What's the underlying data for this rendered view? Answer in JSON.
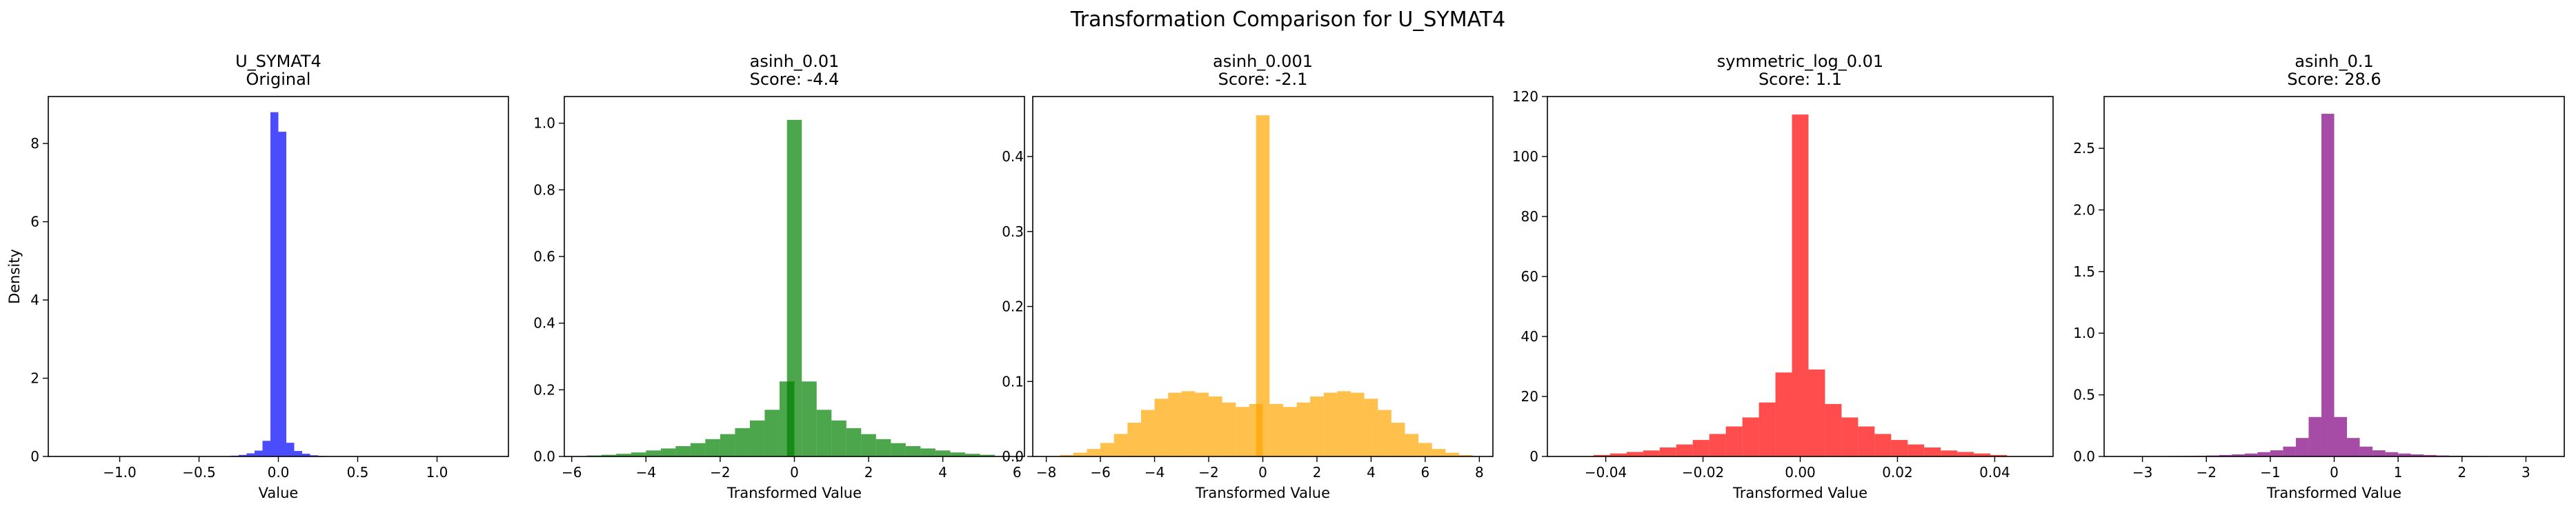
{
  "figure": {
    "suptitle": "Transformation Comparison for U_SYMAT4"
  },
  "chart_data": [
    {
      "type": "bar",
      "title": "U_SYMAT4\nOriginal",
      "xlabel": "Value",
      "ylabel": "Density",
      "color": "#0000ff",
      "xlim": [
        -1.45,
        1.45
      ],
      "ylim": [
        0,
        9.2
      ],
      "xticks": [
        -1.0,
        -0.5,
        0.0,
        0.5,
        1.0
      ],
      "xtick_labels": [
        "−1.0",
        "−0.5",
        "0.0",
        "0.5",
        "1.0"
      ],
      "yticks": [
        0,
        2,
        4,
        6,
        8
      ],
      "ytick_labels": [
        "0",
        "2",
        "4",
        "6",
        "8"
      ],
      "bin_width": 0.05,
      "bins": [
        {
          "x0": -0.35,
          "v": 0.01
        },
        {
          "x0": -0.3,
          "v": 0.02
        },
        {
          "x0": -0.25,
          "v": 0.04
        },
        {
          "x0": -0.2,
          "v": 0.08
        },
        {
          "x0": -0.15,
          "v": 0.15
        },
        {
          "x0": -0.1,
          "v": 0.4
        },
        {
          "x0": -0.05,
          "v": 8.8
        },
        {
          "x0": 0.0,
          "v": 8.3
        },
        {
          "x0": 0.05,
          "v": 0.35
        },
        {
          "x0": 0.1,
          "v": 0.14
        },
        {
          "x0": 0.15,
          "v": 0.07
        },
        {
          "x0": 0.2,
          "v": 0.03
        },
        {
          "x0": 0.25,
          "v": 0.015
        },
        {
          "x0": 0.3,
          "v": 0.01
        }
      ]
    },
    {
      "type": "bar",
      "title": "asinh_0.01\nScore: -4.4",
      "xlabel": "Transformed Value",
      "ylabel": "",
      "color": "#008000",
      "xlim": [
        -6.2,
        6.2
      ],
      "ylim": [
        0,
        1.08
      ],
      "xticks": [
        -6,
        -4,
        -2,
        0,
        2,
        4,
        6
      ],
      "xtick_labels": [
        "−6",
        "−4",
        "−2",
        "0",
        "2",
        "4",
        "6"
      ],
      "yticks": [
        0.0,
        0.2,
        0.4,
        0.6,
        0.8,
        1.0
      ],
      "ytick_labels": [
        "0.0",
        "0.2",
        "0.4",
        "0.6",
        "0.8",
        "1.0"
      ],
      "bin_width": 0.4,
      "bins": [
        {
          "x0": -5.6,
          "v": 0.003
        },
        {
          "x0": -5.2,
          "v": 0.005
        },
        {
          "x0": -4.8,
          "v": 0.008
        },
        {
          "x0": -4.4,
          "v": 0.012
        },
        {
          "x0": -4.0,
          "v": 0.018
        },
        {
          "x0": -3.6,
          "v": 0.024
        },
        {
          "x0": -3.2,
          "v": 0.031
        },
        {
          "x0": -2.8,
          "v": 0.04
        },
        {
          "x0": -2.4,
          "v": 0.052
        },
        {
          "x0": -2.0,
          "v": 0.067
        },
        {
          "x0": -1.6,
          "v": 0.085
        },
        {
          "x0": -1.2,
          "v": 0.108
        },
        {
          "x0": -0.8,
          "v": 0.14
        },
        {
          "x0": -0.4,
          "v": 0.225
        },
        {
          "x0": -0.2,
          "v": 1.01
        },
        {
          "x0": 0.2,
          "v": 0.225
        },
        {
          "x0": 0.6,
          "v": 0.14
        },
        {
          "x0": 1.0,
          "v": 0.108
        },
        {
          "x0": 1.4,
          "v": 0.085
        },
        {
          "x0": 1.8,
          "v": 0.067
        },
        {
          "x0": 2.2,
          "v": 0.052
        },
        {
          "x0": 2.6,
          "v": 0.04
        },
        {
          "x0": 3.0,
          "v": 0.031
        },
        {
          "x0": 3.4,
          "v": 0.024
        },
        {
          "x0": 3.8,
          "v": 0.018
        },
        {
          "x0": 4.2,
          "v": 0.012
        },
        {
          "x0": 4.6,
          "v": 0.008
        },
        {
          "x0": 5.0,
          "v": 0.005
        }
      ]
    },
    {
      "type": "bar",
      "title": "asinh_0.001\nScore: -2.1",
      "xlabel": "Transformed Value",
      "ylabel": "",
      "color": "#ffa500",
      "xlim": [
        -8.5,
        8.5
      ],
      "ylim": [
        0,
        0.48
      ],
      "xticks": [
        -8,
        -6,
        -4,
        -2,
        0,
        2,
        4,
        6,
        8
      ],
      "xtick_labels": [
        "−8",
        "−6",
        "−4",
        "−2",
        "0",
        "2",
        "4",
        "6",
        "8"
      ],
      "yticks": [
        0.0,
        0.1,
        0.2,
        0.3,
        0.4
      ],
      "ytick_labels": [
        "0.0",
        "0.1",
        "0.2",
        "0.3",
        "0.4"
      ],
      "bin_width": 0.5,
      "bins": [
        {
          "x0": -7.5,
          "v": 0.002
        },
        {
          "x0": -7.0,
          "v": 0.005
        },
        {
          "x0": -6.5,
          "v": 0.01
        },
        {
          "x0": -6.0,
          "v": 0.018
        },
        {
          "x0": -5.5,
          "v": 0.03
        },
        {
          "x0": -5.0,
          "v": 0.045
        },
        {
          "x0": -4.5,
          "v": 0.062
        },
        {
          "x0": -4.0,
          "v": 0.077
        },
        {
          "x0": -3.5,
          "v": 0.085
        },
        {
          "x0": -3.0,
          "v": 0.087
        },
        {
          "x0": -2.5,
          "v": 0.085
        },
        {
          "x0": -2.0,
          "v": 0.08
        },
        {
          "x0": -1.5,
          "v": 0.072
        },
        {
          "x0": -1.0,
          "v": 0.066
        },
        {
          "x0": -0.5,
          "v": 0.07
        },
        {
          "x0": -0.25,
          "v": 0.455
        },
        {
          "x0": 0.25,
          "v": 0.07
        },
        {
          "x0": 0.75,
          "v": 0.066
        },
        {
          "x0": 1.25,
          "v": 0.072
        },
        {
          "x0": 1.75,
          "v": 0.08
        },
        {
          "x0": 2.25,
          "v": 0.085
        },
        {
          "x0": 2.75,
          "v": 0.087
        },
        {
          "x0": 3.25,
          "v": 0.085
        },
        {
          "x0": 3.75,
          "v": 0.077
        },
        {
          "x0": 4.25,
          "v": 0.062
        },
        {
          "x0": 4.75,
          "v": 0.045
        },
        {
          "x0": 5.25,
          "v": 0.03
        },
        {
          "x0": 5.75,
          "v": 0.018
        },
        {
          "x0": 6.25,
          "v": 0.01
        },
        {
          "x0": 6.75,
          "v": 0.005
        },
        {
          "x0": 7.25,
          "v": 0.002
        }
      ]
    },
    {
      "type": "bar",
      "title": "symmetric_log_0.01\nScore: 1.1",
      "xlabel": "Transformed Value",
      "ylabel": "",
      "color": "#ff0000",
      "xlim": [
        -0.052,
        0.052
      ],
      "ylim": [
        0,
        120
      ],
      "xticks": [
        -0.04,
        -0.02,
        0.0,
        0.02,
        0.04
      ],
      "xtick_labels": [
        "−0.04",
        "−0.02",
        "0.00",
        "0.02",
        "0.04"
      ],
      "yticks": [
        0,
        20,
        40,
        60,
        80,
        100,
        120
      ],
      "ytick_labels": [
        "0",
        "20",
        "40",
        "60",
        "80",
        "100",
        "120"
      ],
      "bin_width": 0.0034,
      "bins": [
        {
          "x0": -0.0425,
          "v": 0.5
        },
        {
          "x0": -0.0391,
          "v": 1
        },
        {
          "x0": -0.0357,
          "v": 1.5
        },
        {
          "x0": -0.0323,
          "v": 2
        },
        {
          "x0": -0.0289,
          "v": 3
        },
        {
          "x0": -0.0255,
          "v": 4
        },
        {
          "x0": -0.0221,
          "v": 5.5
        },
        {
          "x0": -0.0187,
          "v": 7.5
        },
        {
          "x0": -0.0153,
          "v": 10
        },
        {
          "x0": -0.0119,
          "v": 13
        },
        {
          "x0": -0.0085,
          "v": 18
        },
        {
          "x0": -0.0051,
          "v": 28
        },
        {
          "x0": -0.0017,
          "v": 114
        },
        {
          "x0": 0.0017,
          "v": 29
        },
        {
          "x0": 0.0051,
          "v": 17.5
        },
        {
          "x0": 0.0085,
          "v": 13
        },
        {
          "x0": 0.0119,
          "v": 10
        },
        {
          "x0": 0.0153,
          "v": 7.5
        },
        {
          "x0": 0.0187,
          "v": 5.5
        },
        {
          "x0": 0.0221,
          "v": 4
        },
        {
          "x0": 0.0255,
          "v": 3
        },
        {
          "x0": 0.0289,
          "v": 2
        },
        {
          "x0": 0.0323,
          "v": 1.5
        },
        {
          "x0": 0.0357,
          "v": 1
        },
        {
          "x0": 0.0391,
          "v": 0.5
        }
      ]
    },
    {
      "type": "bar",
      "title": "asinh_0.1\nScore: 28.6",
      "xlabel": "Transformed Value",
      "ylabel": "",
      "color": "#800080",
      "xlim": [
        -3.6,
        3.6
      ],
      "ylim": [
        0,
        2.92
      ],
      "xticks": [
        -3,
        -2,
        -1,
        0,
        1,
        2,
        3
      ],
      "xtick_labels": [
        "−3",
        "−2",
        "−1",
        "0",
        "1",
        "2",
        "3"
      ],
      "yticks": [
        0.0,
        0.5,
        1.0,
        1.5,
        2.0,
        2.5
      ],
      "ytick_labels": [
        "0.0",
        "0.5",
        "1.0",
        "1.5",
        "2.0",
        "2.5"
      ],
      "bin_width": 0.2,
      "bins": [
        {
          "x0": -3.0,
          "v": 0.002
        },
        {
          "x0": -2.8,
          "v": 0.003
        },
        {
          "x0": -2.6,
          "v": 0.004
        },
        {
          "x0": -2.4,
          "v": 0.005
        },
        {
          "x0": -2.2,
          "v": 0.006
        },
        {
          "x0": -2.0,
          "v": 0.008
        },
        {
          "x0": -1.8,
          "v": 0.012
        },
        {
          "x0": -1.6,
          "v": 0.017
        },
        {
          "x0": -1.4,
          "v": 0.024
        },
        {
          "x0": -1.2,
          "v": 0.035
        },
        {
          "x0": -1.0,
          "v": 0.05
        },
        {
          "x0": -0.8,
          "v": 0.08
        },
        {
          "x0": -0.6,
          "v": 0.15
        },
        {
          "x0": -0.4,
          "v": 0.32
        },
        {
          "x0": -0.2,
          "v": 2.78
        },
        {
          "x0": 0.0,
          "v": 0.32
        },
        {
          "x0": 0.2,
          "v": 0.15
        },
        {
          "x0": 0.4,
          "v": 0.08
        },
        {
          "x0": 0.6,
          "v": 0.05
        },
        {
          "x0": 0.8,
          "v": 0.035
        },
        {
          "x0": 1.0,
          "v": 0.024
        },
        {
          "x0": 1.2,
          "v": 0.017
        },
        {
          "x0": 1.4,
          "v": 0.012
        },
        {
          "x0": 1.6,
          "v": 0.008
        },
        {
          "x0": 1.8,
          "v": 0.006
        },
        {
          "x0": 2.0,
          "v": 0.005
        },
        {
          "x0": 2.2,
          "v": 0.004
        },
        {
          "x0": 2.4,
          "v": 0.003
        },
        {
          "x0": 2.6,
          "v": 0.002
        }
      ]
    }
  ]
}
